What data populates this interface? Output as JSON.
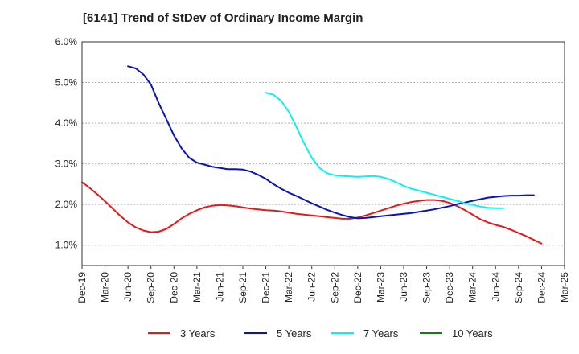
{
  "chart_data": {
    "type": "line",
    "title": "[6141]  Trend of StDev of Ordinary Income Margin",
    "xlabel": "",
    "ylabel": "",
    "x_ticks": [
      "Dec-19",
      "Mar-20",
      "Jun-20",
      "Sep-20",
      "Dec-20",
      "Mar-21",
      "Jun-21",
      "Sep-21",
      "Dec-21",
      "Mar-22",
      "Jun-22",
      "Sep-22",
      "Dec-22",
      "Mar-23",
      "Jun-23",
      "Sep-23",
      "Dec-23",
      "Mar-24",
      "Jun-24",
      "Sep-24",
      "Dec-24",
      "Mar-25"
    ],
    "y_ticks": [
      "1.0%",
      "2.0%",
      "3.0%",
      "4.0%",
      "5.0%",
      "6.0%"
    ],
    "y_tick_values": [
      1.0,
      2.0,
      3.0,
      4.0,
      5.0,
      6.0
    ],
    "ylim": [
      0.5,
      6.0
    ],
    "grid": true,
    "legend_position": "bottom",
    "series": [
      {
        "name": "3 Years",
        "color": "#e31a1c",
        "start_index": 0,
        "values": [
          2.55,
          2.41,
          2.25,
          2.08,
          1.9,
          1.72,
          1.56,
          1.44,
          1.36,
          1.32,
          1.33,
          1.4,
          1.52,
          1.66,
          1.77,
          1.86,
          1.93,
          1.97,
          1.99,
          1.98,
          1.96,
          1.93,
          1.9,
          1.88,
          1.86,
          1.85,
          1.83,
          1.8,
          1.77,
          1.75,
          1.73,
          1.71,
          1.69,
          1.67,
          1.65,
          1.65,
          1.68,
          1.73,
          1.79,
          1.85,
          1.91,
          1.97,
          2.02,
          2.06,
          2.09,
          2.11,
          2.11,
          2.09,
          2.04,
          1.96,
          1.86,
          1.75,
          1.64,
          1.56,
          1.5,
          1.45,
          1.38,
          1.3,
          1.22,
          1.13,
          1.04
        ]
      },
      {
        "name": "5 Years",
        "color": "#0a14b4",
        "start_index": 6,
        "values": [
          5.4,
          5.35,
          5.2,
          4.95,
          4.5,
          4.1,
          3.7,
          3.38,
          3.15,
          3.03,
          2.98,
          2.93,
          2.9,
          2.87,
          2.87,
          2.86,
          2.81,
          2.73,
          2.63,
          2.5,
          2.39,
          2.29,
          2.21,
          2.12,
          2.03,
          1.95,
          1.87,
          1.8,
          1.74,
          1.69,
          1.66,
          1.67,
          1.69,
          1.71,
          1.73,
          1.75,
          1.77,
          1.79,
          1.82,
          1.85,
          1.88,
          1.92,
          1.96,
          2.01,
          2.05,
          2.09,
          2.13,
          2.17,
          2.19,
          2.21,
          2.22,
          2.22,
          2.23,
          2.23
        ]
      },
      {
        "name": "7 Years",
        "color": "#10eeee",
        "start_index": 24,
        "values": [
          4.75,
          4.7,
          4.55,
          4.28,
          3.9,
          3.5,
          3.15,
          2.9,
          2.77,
          2.72,
          2.7,
          2.69,
          2.68,
          2.69,
          2.7,
          2.68,
          2.63,
          2.55,
          2.46,
          2.39,
          2.34,
          2.29,
          2.24,
          2.19,
          2.14,
          2.09,
          2.03,
          1.99,
          1.95,
          1.92,
          1.91,
          1.91
        ]
      },
      {
        "name": "10 Years",
        "color": "#1a7a1a",
        "start_index": 0,
        "values": []
      }
    ]
  }
}
